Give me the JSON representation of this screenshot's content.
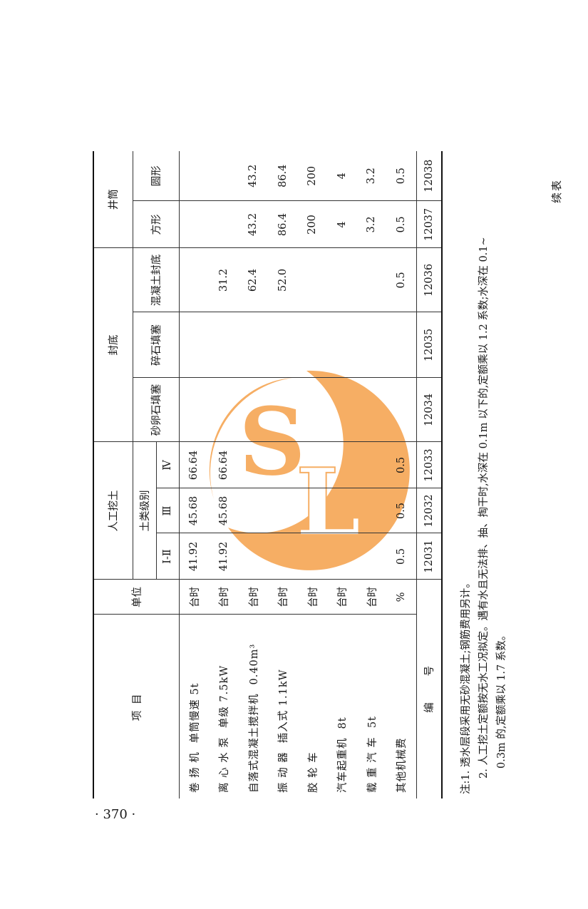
{
  "continued_label": "续表",
  "page_number": "· 370 ·",
  "watermark": {
    "text": "SL",
    "color": "#f5a04a"
  },
  "header": {
    "item": "项  目",
    "unit": "单位",
    "manual_dig": "人工挖土",
    "soil_class": "土类级别",
    "soil_classes": [
      "Ⅰ-Ⅱ",
      "Ⅲ",
      "Ⅳ"
    ],
    "seal_bottom": "封底",
    "seal_types": [
      "砂卵石填塞",
      "碎石填塞",
      "混凝土封底"
    ],
    "shaft": "井筒",
    "shaft_types": [
      "方形",
      "圆形"
    ]
  },
  "rows": [
    {
      "name": "卷 扬 机",
      "spec": "单筒慢速 5t",
      "unit": "台时",
      "values": [
        "41.92",
        "45.68",
        "66.64",
        "",
        "",
        "",
        "",
        ""
      ]
    },
    {
      "name": "离 心 水 泵",
      "spec": "单级 7.5kW",
      "unit": "台时",
      "values": [
        "41.92",
        "45.68",
        "66.64",
        "",
        "",
        "31.2",
        "",
        ""
      ]
    },
    {
      "name": "自落式混凝土搅拌机",
      "spec": "0.40m³",
      "unit": "台时",
      "values": [
        "",
        "",
        "",
        "",
        "",
        "62.4",
        "43.2",
        "43.2"
      ]
    },
    {
      "name": "振 动 器",
      "spec": "插入式 1.1kW",
      "unit": "台时",
      "values": [
        "",
        "",
        "",
        "",
        "",
        "52.0",
        "86.4",
        "86.4"
      ]
    },
    {
      "name": "胶 轮 车",
      "spec": "",
      "unit": "台时",
      "values": [
        "",
        "",
        "",
        "",
        "",
        "",
        "200",
        "200"
      ]
    },
    {
      "name": "汽车起重机",
      "spec": "8t",
      "unit": "台时",
      "values": [
        "",
        "",
        "",
        "",
        "",
        "",
        "4",
        "4"
      ]
    },
    {
      "name": "载 重 汽 车",
      "spec": "5t",
      "unit": "台时",
      "values": [
        "",
        "",
        "",
        "",
        "",
        "",
        "3.2",
        "3.2"
      ]
    },
    {
      "name": "其他机械费",
      "spec": "",
      "unit": "%",
      "values": [
        "0.5",
        "0.5",
        "0.5",
        "",
        "",
        "0.5",
        "0.5",
        "0.5"
      ]
    }
  ],
  "code_label": "编        号",
  "codes": [
    "12031",
    "12032",
    "12033",
    "12034",
    "12035",
    "12036",
    "12037",
    "12038"
  ],
  "notes": [
    "注:1. 透水层段采用无砂混凝土;钢筋费用另计。",
    "2. 人工挖土定额按无水工况拟定。遇有水且无法排、抽、掏干时,水深在 0.1m 以下的,定额乘以 1.2 系数;水深在 0.1~",
    "0.3m 的,定额乘以 1.7 系数。"
  ]
}
